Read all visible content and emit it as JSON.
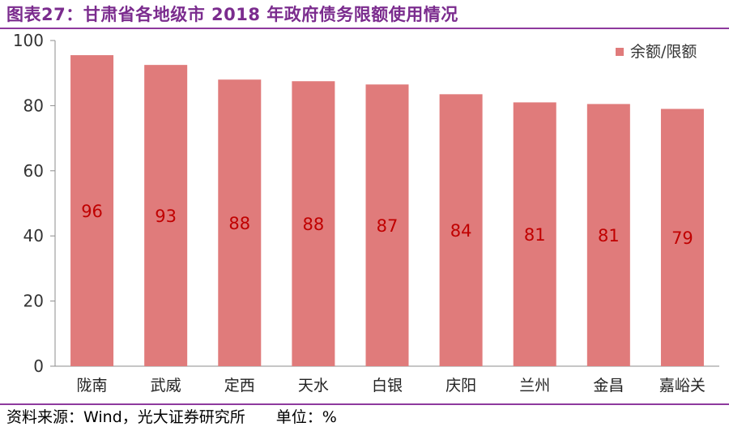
{
  "title": "图表27：甘肃省各地级市 2018 年政府债务限额使用情况",
  "source": {
    "text": "资料来源：Wind，光大证券研究所",
    "unit": "单位：%"
  },
  "colors": {
    "bar": "#e07b7b",
    "label": "#c00000",
    "title": "#7b2c8e"
  },
  "chart_data": {
    "type": "bar",
    "categories": [
      "陇南",
      "武威",
      "定西",
      "天水",
      "白银",
      "庆阳",
      "兰州",
      "金昌",
      "嘉峪关"
    ],
    "series": [
      {
        "name": "余额/限额",
        "values": [
          95.5,
          92.5,
          88,
          87.5,
          86.5,
          83.5,
          81,
          80.5,
          79
        ]
      }
    ],
    "data_labels": [
      "96",
      "93",
      "88",
      "88",
      "87",
      "84",
      "81",
      "81",
      "79"
    ],
    "yticks": [
      "0",
      "20",
      "40",
      "60",
      "80",
      "100"
    ],
    "ylim": [
      0,
      100
    ],
    "grid": false,
    "legend_position": "top-right"
  }
}
